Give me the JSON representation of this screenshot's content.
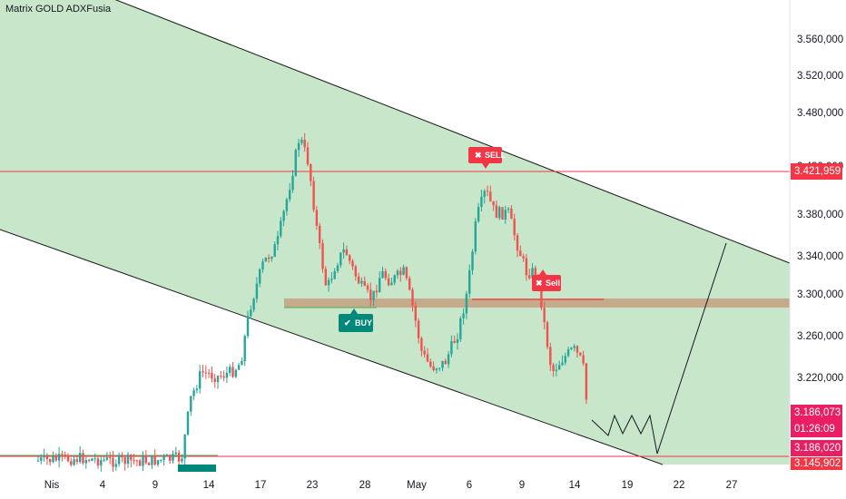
{
  "chart_data": {
    "type": "candlestick",
    "title": "Matrix GOLD ADXFusia",
    "y_ticks": [
      "3.560,000",
      "3.520,000",
      "3.480,000",
      "3.430,000",
      "3.380,000",
      "3.340,000",
      "3.300,000",
      "3.260,000",
      "3.220,000"
    ],
    "x_ticks": [
      "Nis",
      "4",
      "9",
      "14",
      "17",
      "23",
      "28",
      "May",
      "6",
      "9",
      "14",
      "19",
      "22",
      "27"
    ],
    "price_labels": {
      "resistance": "3.421,959",
      "current": "3.186,073",
      "countdown": "01:26:09",
      "low": "3.186,020",
      "support": "3.145,902"
    },
    "signals": [
      {
        "label": "SELL",
        "type": "sell"
      },
      {
        "label": "BUY",
        "type": "buy"
      },
      {
        "label": "Sell",
        "type": "sell"
      }
    ],
    "channel": "descending, shaded green",
    "horizontal_lines": [
      "3.421,959 red",
      "3.145,902 red",
      "~3.290,000 brown zone"
    ],
    "projection": "zigzag then rally to channel top"
  },
  "colors": {
    "bull": "#26a69a",
    "bear": "#ef5350",
    "channel_fill": "#c8e6c9",
    "resistance": "#f23645",
    "zone": "#c4a484",
    "current_tag": "#e91e63"
  }
}
